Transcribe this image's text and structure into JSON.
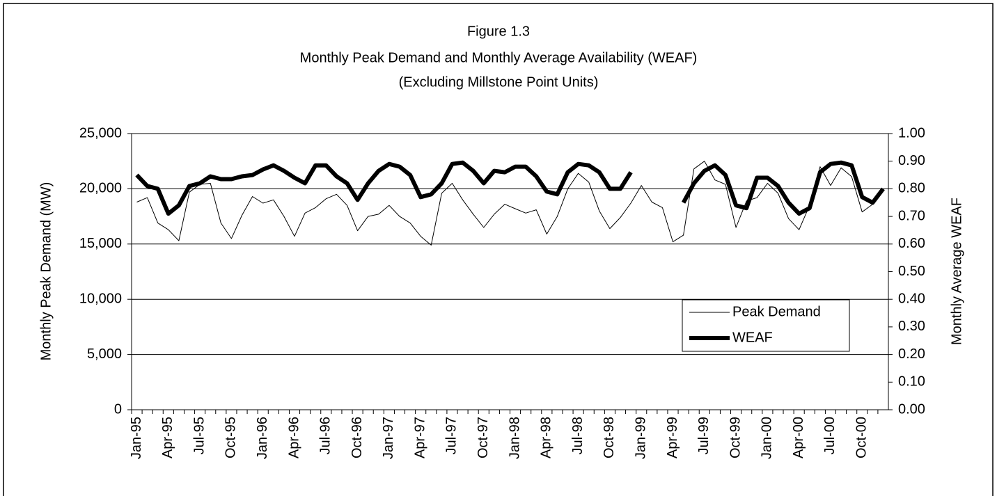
{
  "chart_data": {
    "type": "line",
    "title": "Figure 1.3",
    "subtitle": [
      "Monthly Peak Demand and Monthly Average Availability (WEAF)",
      "(Excluding Millstone Point Units)"
    ],
    "y_label": "Monthly Peak Demand (MW)",
    "y2_label": "Monthly Average WEAF",
    "categories": [
      "Jan-95",
      null,
      null,
      "Apr-95",
      null,
      null,
      "Jul-95",
      null,
      null,
      "Oct-95",
      null,
      null,
      "Jan-96",
      null,
      null,
      "Apr-96",
      null,
      null,
      "Jul-96",
      null,
      null,
      "Oct-96",
      null,
      null,
      "Jan-97",
      null,
      null,
      "Apr-97",
      null,
      null,
      "Jul-97",
      null,
      null,
      "Oct-97",
      null,
      null,
      "Jan-98",
      null,
      null,
      "Apr-98",
      null,
      null,
      "Jul-98",
      null,
      null,
      "Oct-98",
      null,
      null,
      "Jan-99",
      null,
      null,
      "Apr-99",
      null,
      null,
      "Jul-99",
      null,
      null,
      "Oct-99",
      null,
      null,
      "Jan-00",
      null,
      null,
      "Apr-00",
      null,
      null,
      "Jul-00",
      null,
      null,
      "Oct-00",
      null,
      null
    ],
    "series": [
      {
        "name": "Peak Demand",
        "color": "#000000",
        "width": 1,
        "values": [
          18800,
          19200,
          16900,
          16300,
          15300,
          19700,
          20400,
          20500,
          16900,
          15500,
          17600,
          19300,
          18700,
          19000,
          17500,
          15700,
          17800,
          18300,
          19100,
          19500,
          18500,
          16200,
          17500,
          17700,
          18500,
          17500,
          16900,
          15700,
          14900,
          19600,
          20500,
          19000,
          17700,
          16500,
          17700,
          18600,
          18200,
          17800,
          18100,
          15900,
          17500,
          20000,
          21400,
          20600,
          18000,
          16400,
          17400,
          18700,
          20300,
          18800,
          18300,
          15200,
          15800,
          21800,
          22500,
          20800,
          20400,
          16500,
          18900,
          19200,
          20500,
          19600,
          17300,
          16300,
          18500,
          22000,
          20300,
          21900,
          21100,
          17900,
          18600,
          20000
        ]
      },
      {
        "name": "WEAF",
        "color": "#000000",
        "width": 6,
        "axis": "y2",
        "values": [
          0.85,
          0.81,
          0.8,
          0.71,
          0.74,
          0.81,
          0.82,
          0.845,
          0.835,
          0.835,
          0.845,
          0.85,
          0.87,
          0.885,
          0.865,
          0.84,
          0.82,
          0.885,
          0.885,
          0.845,
          0.82,
          0.76,
          0.82,
          0.865,
          0.89,
          0.88,
          0.85,
          0.77,
          0.78,
          0.82,
          0.89,
          0.895,
          0.865,
          0.82,
          0.865,
          0.86,
          0.88,
          0.88,
          0.845,
          0.79,
          0.78,
          0.86,
          0.89,
          0.885,
          0.86,
          0.8,
          0.8,
          0.86,
          null,
          null,
          null,
          null,
          0.75,
          0.82,
          0.865,
          0.885,
          0.85,
          0.74,
          0.73,
          0.84,
          0.84,
          0.81,
          0.75,
          0.71,
          0.73,
          0.86,
          0.89,
          0.895,
          0.885,
          0.77,
          0.75,
          0.8
        ]
      }
    ],
    "ylim": [
      0,
      25000
    ],
    "yticks": [
      0,
      {
        "value": 5000,
        "label": "5,000"
      },
      {
        "value": 10000,
        "label": "10,000"
      },
      {
        "value": 15000,
        "label": "15,000"
      },
      {
        "value": 20000,
        "label": "20,000"
      },
      {
        "value": 25000,
        "label": "25,000"
      }
    ],
    "y2lim": [
      0,
      1
    ],
    "y2ticks": [
      {
        "value": 0,
        "label": "0.00"
      },
      {
        "value": 0.1,
        "label": "0.10"
      },
      {
        "value": 0.2,
        "label": "0.20"
      },
      {
        "value": 0.3,
        "label": "0.30"
      },
      {
        "value": 0.4,
        "label": "0.40"
      },
      {
        "value": 0.5,
        "label": "0.50"
      },
      {
        "value": 0.6,
        "label": "0.60"
      },
      {
        "value": 0.7,
        "label": "0.70"
      },
      {
        "value": 0.8,
        "label": "0.80"
      },
      {
        "value": 0.9,
        "label": "0.90"
      },
      {
        "value": 1,
        "label": "1.00"
      }
    ],
    "grid": true,
    "legend": "right"
  }
}
